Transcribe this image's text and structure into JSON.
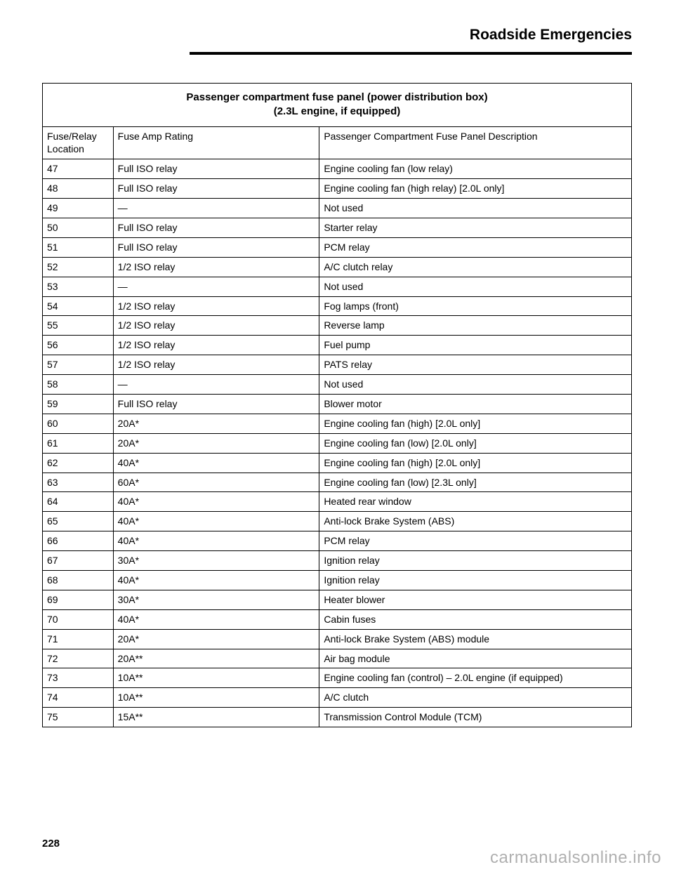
{
  "header": {
    "title": "Roadside Emergencies"
  },
  "table": {
    "title_lines": [
      "Passenger compartment fuse panel (power distribution box)",
      "(2.3L engine, if equipped)"
    ],
    "columns": [
      "Fuse/Relay Location",
      "Fuse Amp Rating",
      "Passenger Compartment Fuse Panel Description"
    ],
    "rows": [
      [
        "47",
        "Full ISO relay",
        "Engine cooling fan (low relay)"
      ],
      [
        "48",
        "Full ISO relay",
        "Engine cooling fan (high relay) [2.0L only]"
      ],
      [
        "49",
        "—",
        "Not used"
      ],
      [
        "50",
        "Full ISO relay",
        "Starter relay"
      ],
      [
        "51",
        "Full ISO relay",
        "PCM relay"
      ],
      [
        "52",
        "1/2 ISO relay",
        "A/C clutch relay"
      ],
      [
        "53",
        "—",
        "Not used"
      ],
      [
        "54",
        "1/2 ISO relay",
        "Fog lamps (front)"
      ],
      [
        "55",
        "1/2 ISO relay",
        "Reverse lamp"
      ],
      [
        "56",
        "1/2 ISO relay",
        "Fuel pump"
      ],
      [
        "57",
        "1/2 ISO relay",
        "PATS relay"
      ],
      [
        "58",
        "—",
        "Not used"
      ],
      [
        "59",
        "Full ISO relay",
        "Blower motor"
      ],
      [
        "60",
        "20A*",
        "Engine cooling fan (high) [2.0L only]"
      ],
      [
        "61",
        "20A*",
        "Engine cooling fan (low) [2.0L only]"
      ],
      [
        "62",
        "40A*",
        "Engine cooling fan (high) [2.0L only]"
      ],
      [
        "63",
        "60A*",
        "Engine cooling fan (low) [2.3L only]"
      ],
      [
        "64",
        "40A*",
        "Heated rear window"
      ],
      [
        "65",
        "40A*",
        "Anti-lock Brake System (ABS)"
      ],
      [
        "66",
        "40A*",
        "PCM relay"
      ],
      [
        "67",
        "30A*",
        "Ignition relay"
      ],
      [
        "68",
        "40A*",
        "Ignition relay"
      ],
      [
        "69",
        "30A*",
        "Heater blower"
      ],
      [
        "70",
        "40A*",
        "Cabin fuses"
      ],
      [
        "71",
        "20A*",
        "Anti-lock Brake System (ABS) module"
      ],
      [
        "72",
        "20A**",
        "Air bag module"
      ],
      [
        "73",
        "10A**",
        "Engine cooling fan (control) – 2.0L engine (if equipped)"
      ],
      [
        "74",
        "10A**",
        "A/C clutch"
      ],
      [
        "75",
        "15A**",
        "Transmission Control Module (TCM)"
      ]
    ]
  },
  "pagenum": "228",
  "watermark": "carmanualsonline.info",
  "colors": {
    "text": "#000000",
    "rule": "#000000",
    "watermark": "#b0b0b0",
    "background": "#ffffff"
  }
}
